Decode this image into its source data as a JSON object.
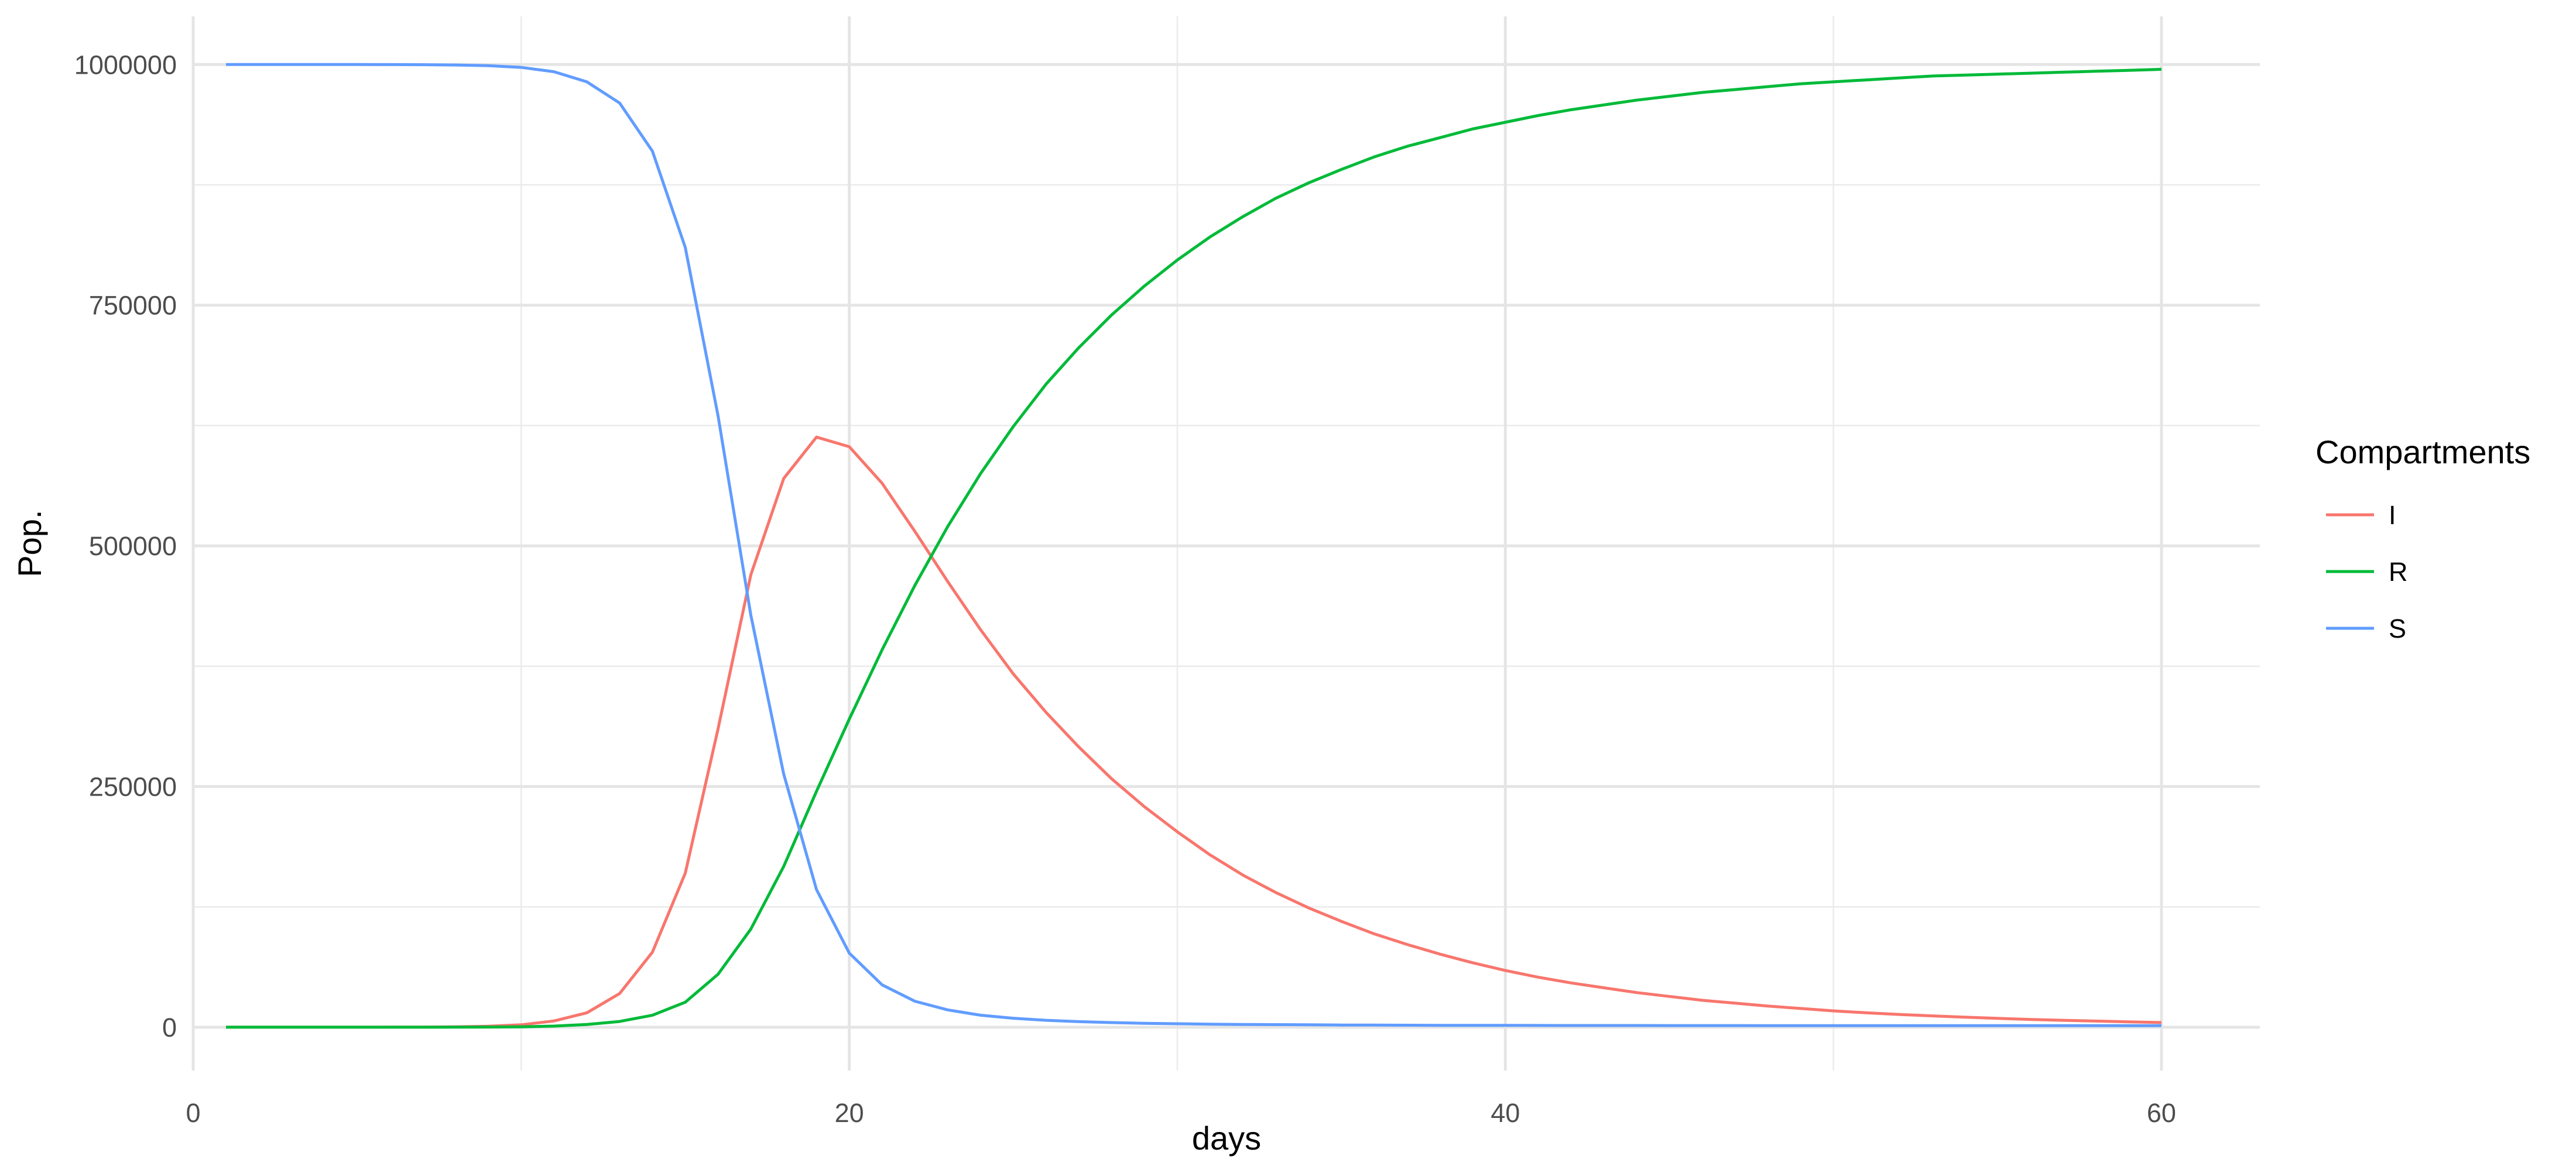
{
  "chart_data": {
    "type": "line",
    "title": "",
    "xlabel": "days",
    "ylabel": "Pop.",
    "xlim": [
      0,
      63
    ],
    "ylim": [
      -45000,
      1050000
    ],
    "x_ticks": [
      0,
      20,
      40,
      60
    ],
    "x_tick_labels": [
      "0",
      "20",
      "40",
      "60"
    ],
    "y_ticks": [
      0,
      250000,
      500000,
      750000,
      1000000
    ],
    "y_tick_labels": [
      "0",
      "250000",
      "500000",
      "750000",
      "1000000"
    ],
    "grid": true,
    "legend": {
      "title": "Compartments",
      "position": "right"
    },
    "x": [
      1,
      2,
      3,
      4,
      5,
      6,
      7,
      8,
      9,
      10,
      11,
      12,
      13,
      14,
      15,
      16,
      17,
      18,
      19,
      20,
      21,
      22,
      23,
      24,
      25,
      26,
      27,
      28,
      29,
      30,
      31,
      32,
      33,
      34,
      35,
      36,
      37,
      38,
      39,
      40,
      41,
      42,
      43,
      44,
      45,
      46,
      47,
      48,
      49,
      50,
      51,
      52,
      53,
      54,
      55,
      56,
      57,
      58,
      59,
      60
    ],
    "series": [
      {
        "name": "I",
        "color": "#F8766D",
        "values": [
          1,
          2,
          5,
          10,
          25,
          65,
          160,
          400,
          1000,
          2500,
          6500,
          15000,
          35000,
          78000,
          160000,
          310000,
          470000,
          570000,
          613000,
          603000,
          565000,
          515000,
          463000,
          413000,
          367000,
          327000,
          291000,
          258000,
          229000,
          203000,
          179000,
          158000,
          140000,
          124000,
          110000,
          97000,
          86000,
          76000,
          67000,
          59000,
          52000,
          46000,
          41000,
          36000,
          32000,
          28000,
          25000,
          22000,
          19500,
          17000,
          15000,
          13300,
          11800,
          10400,
          9200,
          8100,
          7200,
          6400,
          5600,
          4900
        ]
      },
      {
        "name": "R",
        "color": "#00BA38",
        "values": [
          0,
          0,
          1,
          2,
          5,
          12,
          30,
          75,
          190,
          470,
          1200,
          2900,
          6000,
          12500,
          26000,
          55000,
          102000,
          167000,
          245000,
          320000,
          392000,
          459000,
          520000,
          575000,
          624000,
          668000,
          706000,
          740000,
          770000,
          797000,
          821000,
          842000,
          861000,
          877000,
          891000,
          904000,
          915000,
          924000,
          933000,
          940000,
          947000,
          953000,
          958000,
          963000,
          967000,
          971000,
          974000,
          977000,
          980000,
          982000,
          984000,
          986000,
          988000,
          989000,
          990000,
          991000,
          992000,
          993000,
          994000,
          995000
        ]
      },
      {
        "name": "S",
        "color": "#619CFF",
        "values": [
          999999,
          999998,
          999995,
          999990,
          999970,
          999925,
          999810,
          999525,
          998800,
          997000,
          992500,
          982000,
          960000,
          910000,
          810000,
          635000,
          428000,
          263000,
          143000,
          77000,
          44000,
          27000,
          18000,
          12500,
          9300,
          7200,
          5800,
          4800,
          4100,
          3600,
          3200,
          2900,
          2700,
          2500,
          2300,
          2200,
          2100,
          2000,
          1950,
          1900,
          1850,
          1800,
          1780,
          1760,
          1740,
          1720,
          1700,
          1690,
          1680,
          1670,
          1660,
          1650,
          1645,
          1640,
          1635,
          1630,
          1625,
          1620,
          1615,
          1610
        ]
      }
    ]
  }
}
